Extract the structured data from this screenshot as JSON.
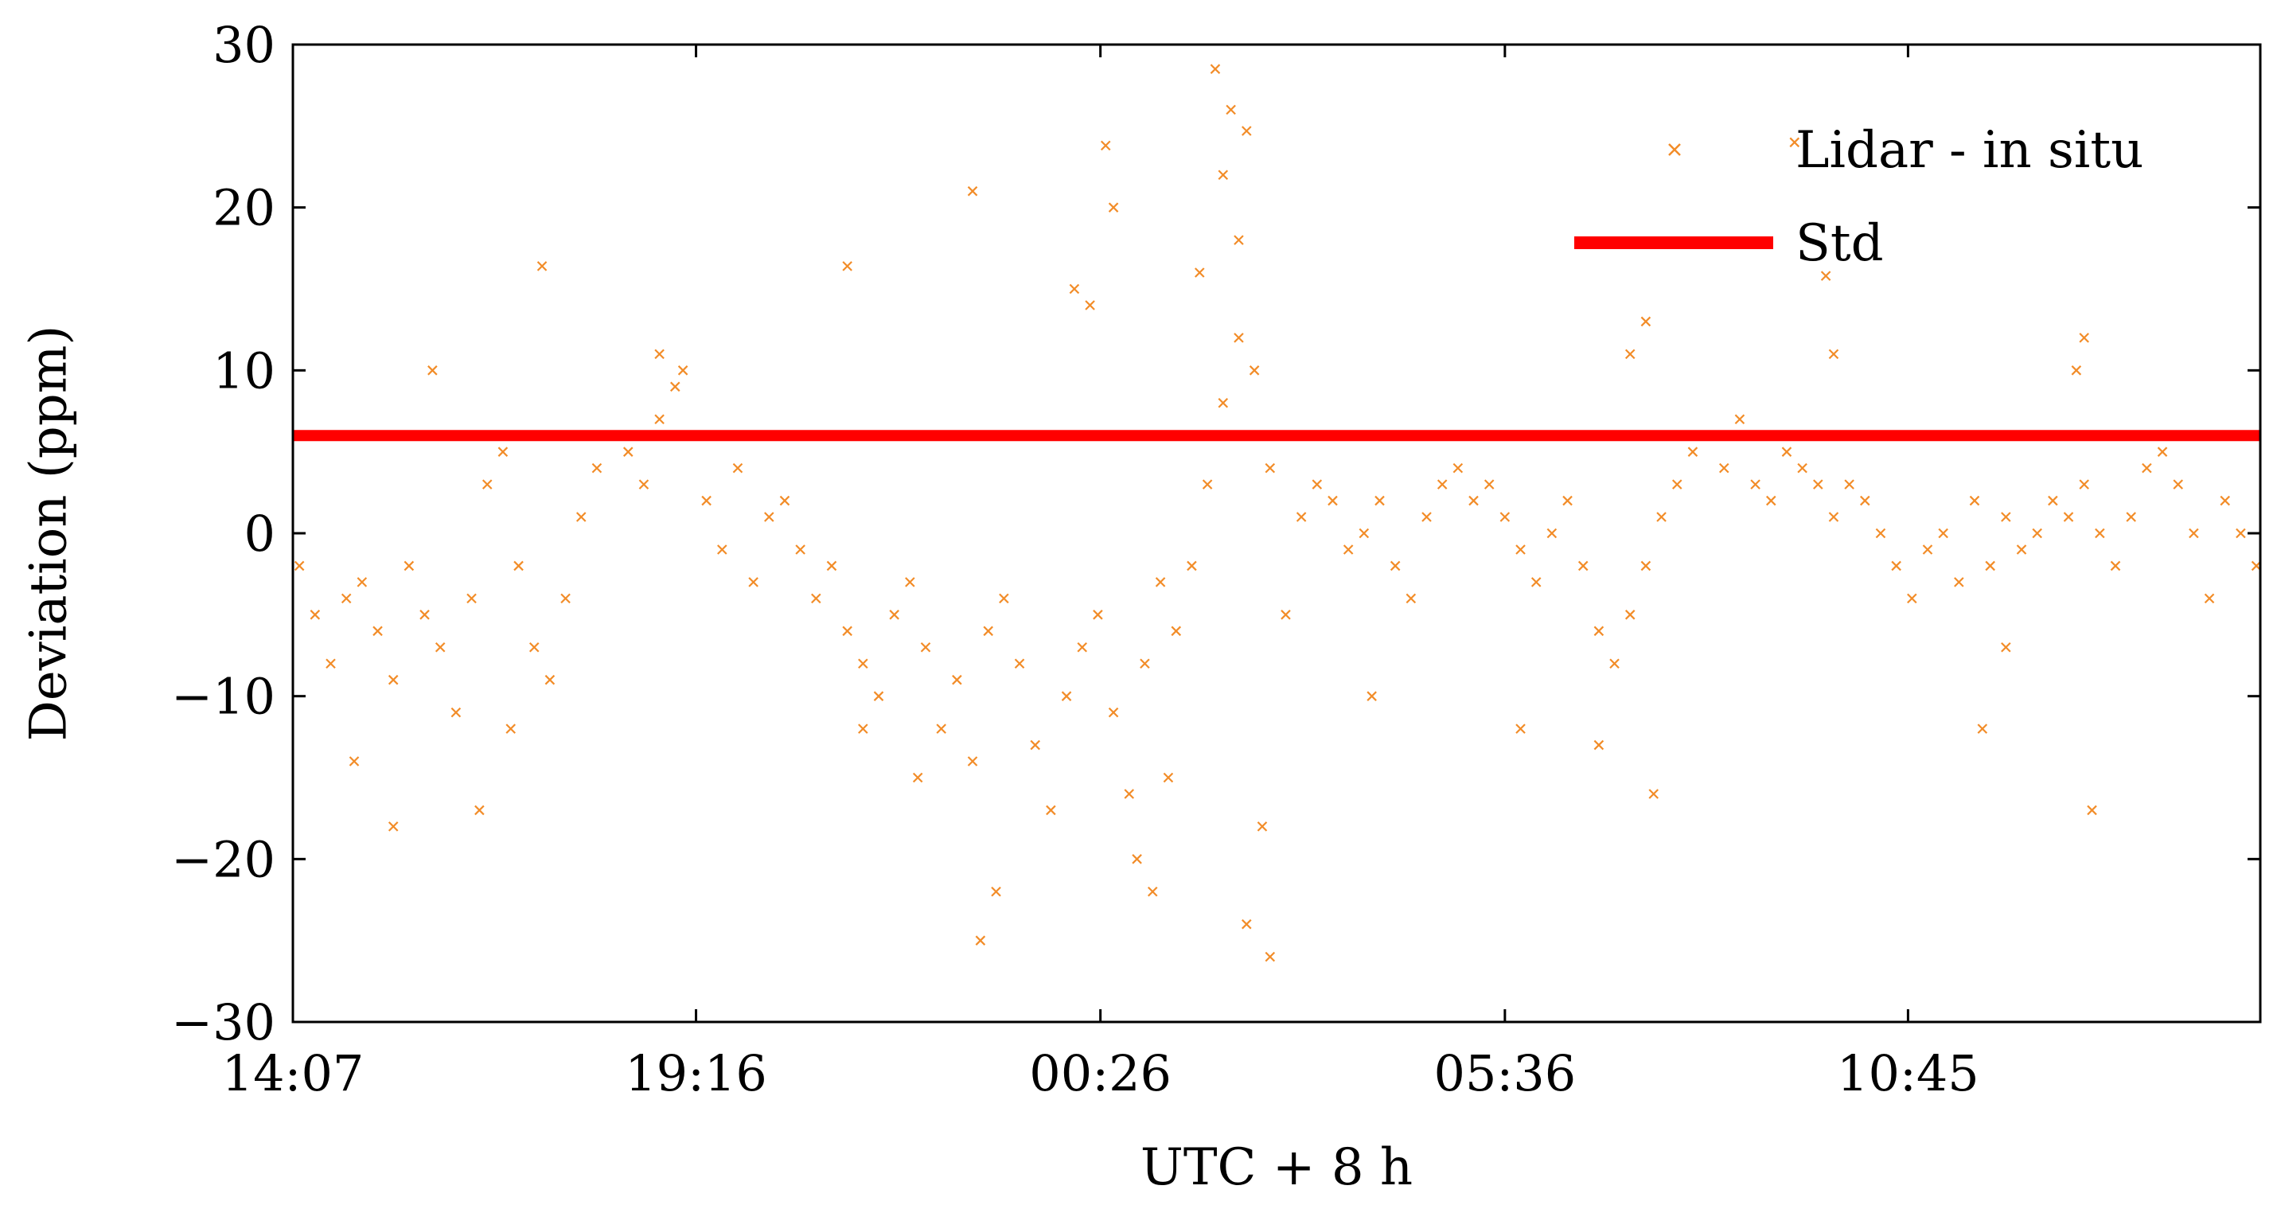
{
  "chart_data": {
    "type": "scatter",
    "xlabel": "UTC + 8 h",
    "ylabel": "Deviation (ppm)",
    "ylim": [
      -30,
      30
    ],
    "y_ticks": [
      30,
      20,
      10,
      0,
      -10,
      -20,
      -30
    ],
    "y_tick_labels": [
      "30",
      "20",
      "10",
      "0",
      "−10",
      "−20",
      "−30"
    ],
    "x_range_hours": [
      14.117,
      39.25
    ],
    "x_ticks": [
      {
        "label": "14:07",
        "hours": 14.117
      },
      {
        "label": "19:16",
        "hours": 19.267
      },
      {
        "label": "00:26",
        "hours": 24.433
      },
      {
        "label": "05:36",
        "hours": 29.6
      },
      {
        "label": "10:45",
        "hours": 34.75
      }
    ],
    "grid": false,
    "legend_position": "top-right",
    "series": [
      {
        "name": "Lidar - in situ",
        "kind": "scatter",
        "marker": "x",
        "color": "#f28c28",
        "points": [
          [
            14.2,
            -2
          ],
          [
            14.4,
            -5
          ],
          [
            14.6,
            -8
          ],
          [
            14.8,
            -4
          ],
          [
            15.0,
            -3
          ],
          [
            15.2,
            -6
          ],
          [
            15.4,
            -9
          ],
          [
            15.6,
            -2
          ],
          [
            15.8,
            -5
          ],
          [
            16.0,
            -7
          ],
          [
            16.2,
            -11
          ],
          [
            16.4,
            -4
          ],
          [
            16.6,
            3
          ],
          [
            16.8,
            5
          ],
          [
            17.0,
            -2
          ],
          [
            17.2,
            -7
          ],
          [
            17.4,
            -9
          ],
          [
            17.6,
            -4
          ],
          [
            17.8,
            1
          ],
          [
            18.0,
            4
          ],
          [
            18.2,
            6
          ],
          [
            18.4,
            5
          ],
          [
            18.6,
            3
          ],
          [
            18.8,
            7
          ],
          [
            19.0,
            9
          ],
          [
            19.2,
            6
          ],
          [
            19.4,
            2
          ],
          [
            19.6,
            -1
          ],
          [
            19.8,
            4
          ],
          [
            20.0,
            -3
          ],
          [
            20.2,
            1
          ],
          [
            20.4,
            2
          ],
          [
            20.6,
            -1
          ],
          [
            20.8,
            -4
          ],
          [
            21.0,
            -2
          ],
          [
            21.2,
            -6
          ],
          [
            21.4,
            -8
          ],
          [
            21.6,
            -10
          ],
          [
            21.8,
            -5
          ],
          [
            22.0,
            -3
          ],
          [
            22.2,
            -7
          ],
          [
            22.4,
            -12
          ],
          [
            22.6,
            -9
          ],
          [
            22.8,
            -14
          ],
          [
            23.0,
            -6
          ],
          [
            23.2,
            -4
          ],
          [
            23.4,
            -8
          ],
          [
            23.6,
            -13
          ],
          [
            23.8,
            -17
          ],
          [
            24.0,
            -10
          ],
          [
            24.2,
            -7
          ],
          [
            24.4,
            -5
          ],
          [
            24.6,
            -11
          ],
          [
            24.8,
            -16
          ],
          [
            25.0,
            -8
          ],
          [
            25.2,
            -3
          ],
          [
            25.4,
            -6
          ],
          [
            25.6,
            -2
          ],
          [
            25.8,
            3
          ],
          [
            26.0,
            8
          ],
          [
            26.2,
            12
          ],
          [
            26.4,
            10
          ],
          [
            26.6,
            4
          ],
          [
            26.8,
            -5
          ],
          [
            27.0,
            1
          ],
          [
            27.2,
            3
          ],
          [
            27.4,
            2
          ],
          [
            27.6,
            -1
          ],
          [
            27.8,
            0
          ],
          [
            28.0,
            2
          ],
          [
            28.2,
            -2
          ],
          [
            28.4,
            -4
          ],
          [
            28.6,
            1
          ],
          [
            28.8,
            3
          ],
          [
            29.0,
            4
          ],
          [
            29.2,
            2
          ],
          [
            29.4,
            3
          ],
          [
            29.6,
            1
          ],
          [
            29.8,
            -1
          ],
          [
            30.0,
            -3
          ],
          [
            30.2,
            0
          ],
          [
            30.4,
            2
          ],
          [
            30.6,
            -2
          ],
          [
            30.8,
            -6
          ],
          [
            31.0,
            -8
          ],
          [
            31.2,
            -5
          ],
          [
            31.4,
            -2
          ],
          [
            31.6,
            1
          ],
          [
            31.8,
            3
          ],
          [
            32.0,
            5
          ],
          [
            32.2,
            6
          ],
          [
            32.4,
            4
          ],
          [
            32.6,
            7
          ],
          [
            32.8,
            3
          ],
          [
            33.0,
            2
          ],
          [
            33.2,
            5
          ],
          [
            33.4,
            4
          ],
          [
            33.6,
            3
          ],
          [
            33.8,
            1
          ],
          [
            34.0,
            3
          ],
          [
            34.2,
            2
          ],
          [
            34.4,
            0
          ],
          [
            34.6,
            -2
          ],
          [
            34.8,
            -4
          ],
          [
            35.0,
            -1
          ],
          [
            35.2,
            0
          ],
          [
            35.4,
            -3
          ],
          [
            35.6,
            2
          ],
          [
            35.8,
            -2
          ],
          [
            36.0,
            1
          ],
          [
            36.2,
            -1
          ],
          [
            36.4,
            0
          ],
          [
            36.6,
            2
          ],
          [
            36.8,
            1
          ],
          [
            37.0,
            3
          ],
          [
            37.2,
            0
          ],
          [
            37.4,
            -2
          ],
          [
            37.6,
            1
          ],
          [
            37.8,
            4
          ],
          [
            38.0,
            5
          ],
          [
            38.2,
            3
          ],
          [
            38.4,
            0
          ],
          [
            38.6,
            -4
          ],
          [
            38.8,
            2
          ],
          [
            39.0,
            0
          ],
          [
            39.2,
            -2
          ],
          [
            24.5,
            23.8
          ],
          [
            25.9,
            28.5
          ],
          [
            26.1,
            26.0
          ],
          [
            26.3,
            24.7
          ],
          [
            33.3,
            24.0
          ],
          [
            24.1,
            15
          ],
          [
            25.7,
            16
          ],
          [
            22.8,
            21
          ],
          [
            26.2,
            18
          ],
          [
            24.3,
            14
          ],
          [
            15.9,
            10
          ],
          [
            16.9,
            -12
          ],
          [
            26.5,
            -18
          ],
          [
            26.3,
            -24
          ],
          [
            23.1,
            -22
          ],
          [
            21.2,
            16.4
          ],
          [
            17.3,
            16.4
          ],
          [
            33.7,
            15.8
          ],
          [
            31.4,
            13
          ],
          [
            24.9,
            -20
          ],
          [
            22.9,
            -25
          ],
          [
            26.6,
            -26
          ],
          [
            37.1,
            -17
          ],
          [
            37.0,
            12
          ],
          [
            15.4,
            -18
          ],
          [
            25.1,
            -22
          ],
          [
            14.9,
            -14
          ],
          [
            16.5,
            -17
          ],
          [
            25.3,
            -15
          ],
          [
            18.8,
            11
          ],
          [
            19.1,
            10
          ],
          [
            31.2,
            11
          ],
          [
            33.8,
            11
          ],
          [
            36.9,
            10
          ],
          [
            24.6,
            20
          ],
          [
            26.0,
            22
          ],
          [
            29.8,
            -12
          ],
          [
            30.8,
            -13
          ],
          [
            31.5,
            -16
          ],
          [
            35.7,
            -12
          ],
          [
            22.1,
            -15
          ],
          [
            21.4,
            -12
          ],
          [
            27.9,
            -10
          ],
          [
            36.0,
            -7
          ]
        ]
      },
      {
        "name": "Std",
        "kind": "line",
        "color": "#ff0000",
        "y": 6
      }
    ]
  }
}
